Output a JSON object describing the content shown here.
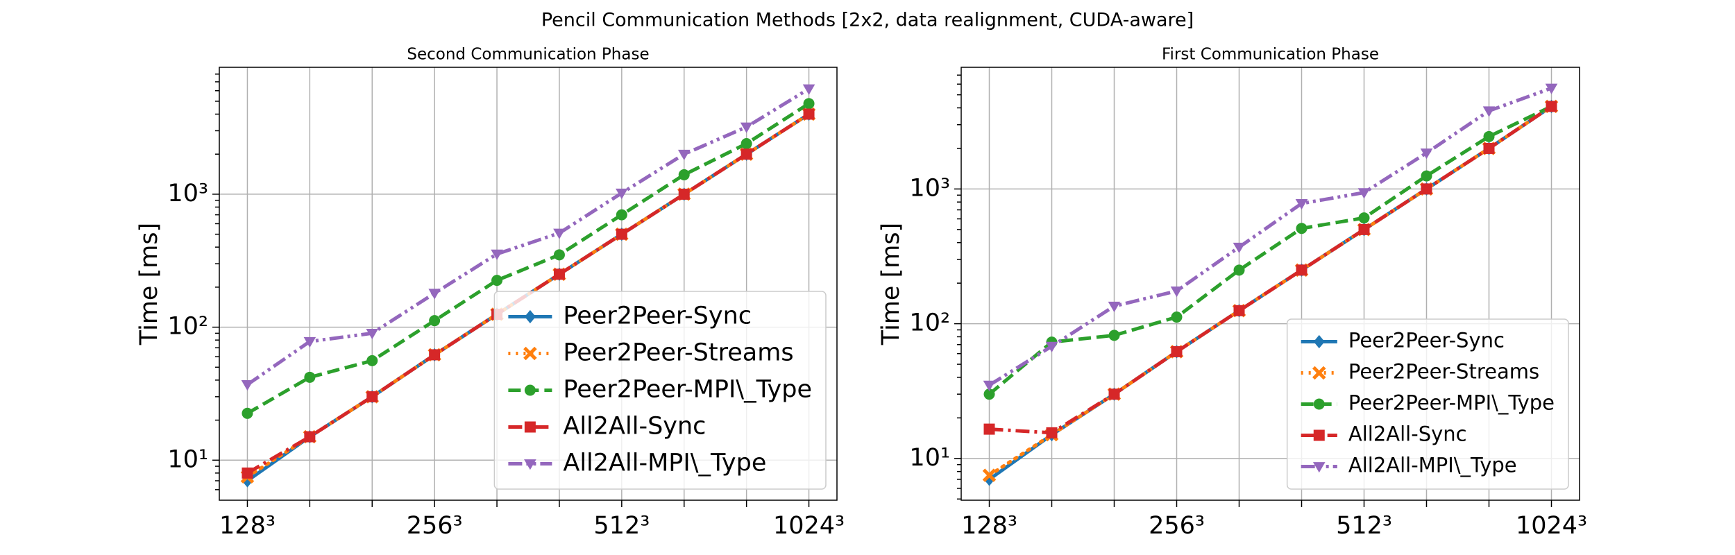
{
  "title": "Pencil Communication Methods [2x2, data realignment, CUDA-aware]",
  "chart_data": [
    {
      "type": "line",
      "title": "Second Communication Phase",
      "ylabel": "Time [ms]",
      "categories": [
        "128³",
        null,
        null,
        "256³",
        null,
        null,
        "512³",
        null,
        null,
        "1024³"
      ],
      "ylog": true,
      "ylim": [
        5,
        9000
      ],
      "yticks": [
        {
          "value": 10,
          "label": "10¹"
        },
        {
          "value": 100,
          "label": "10²"
        },
        {
          "value": 1000,
          "label": "10³"
        }
      ],
      "grid": true,
      "legend": "lower right",
      "series": [
        {
          "name": "Peer2Peer-Sync",
          "color": "#1f77b4",
          "linestyle": "solid",
          "marker": "diamond",
          "values": [
            7,
            15,
            30,
            62,
            125,
            250,
            500,
            1000,
            2000,
            4000
          ]
        },
        {
          "name": "Peer2Peer-Streams",
          "color": "#ff7f0e",
          "linestyle": "dotted",
          "marker": "x",
          "values": [
            7.5,
            15,
            30,
            62,
            125,
            250,
            500,
            1000,
            2000,
            4000
          ]
        },
        {
          "name": "Peer2Peer-MPI\\_Type",
          "color": "#2ca02c",
          "linestyle": "dashed",
          "marker": "circle",
          "values": [
            22.5,
            42,
            56,
            112,
            225,
            350,
            700,
            1400,
            2400,
            4800
          ]
        },
        {
          "name": "All2All-Sync",
          "color": "#d62728",
          "linestyle": "dashdot",
          "marker": "square",
          "values": [
            8,
            15,
            30,
            62,
            125,
            250,
            500,
            1000,
            2000,
            4000
          ]
        },
        {
          "name": "All2All-MPI\\_Type",
          "color": "#9467bd",
          "linestyle": "dashdotdot",
          "marker": "triangle-down",
          "values": [
            37,
            78,
            90,
            180,
            355,
            510,
            1020,
            2000,
            3200,
            6200
          ]
        }
      ]
    },
    {
      "type": "line",
      "title": "First Communication Phase",
      "ylabel": "Time [ms]",
      "categories": [
        "128³",
        null,
        null,
        "256³",
        null,
        null,
        "512³",
        null,
        null,
        "1024³"
      ],
      "ylog": true,
      "ylim": [
        4.9,
        8000
      ],
      "yticks": [
        {
          "value": 10,
          "label": "10¹"
        },
        {
          "value": 100,
          "label": "10²"
        },
        {
          "value": 1000,
          "label": "10³"
        }
      ],
      "grid": true,
      "legend": "lower right",
      "series": [
        {
          "name": "Peer2Peer-Sync",
          "color": "#1f77b4",
          "linestyle": "solid",
          "marker": "diamond",
          "values": [
            7,
            15,
            30,
            62,
            125,
            250,
            500,
            1000,
            2000,
            4100
          ]
        },
        {
          "name": "Peer2Peer-Streams",
          "color": "#ff7f0e",
          "linestyle": "dotted",
          "marker": "x",
          "values": [
            7.5,
            15,
            30,
            62,
            125,
            250,
            500,
            1000,
            2000,
            4100
          ]
        },
        {
          "name": "Peer2Peer-MPI\\_Type",
          "color": "#2ca02c",
          "linestyle": "dashed",
          "marker": "circle",
          "values": [
            30,
            73,
            82,
            112,
            250,
            510,
            610,
            1250,
            2450,
            4100
          ]
        },
        {
          "name": "All2All-Sync",
          "color": "#d62728",
          "linestyle": "dashdot",
          "marker": "square",
          "values": [
            16.5,
            15.5,
            30,
            62,
            125,
            250,
            500,
            1000,
            2000,
            4100
          ]
        },
        {
          "name": "All2All-MPI\\_Type",
          "color": "#9467bd",
          "linestyle": "dashdotdot",
          "marker": "triangle-down",
          "values": [
            35,
            68,
            135,
            175,
            370,
            780,
            940,
            1850,
            3800,
            5600
          ]
        }
      ]
    }
  ]
}
